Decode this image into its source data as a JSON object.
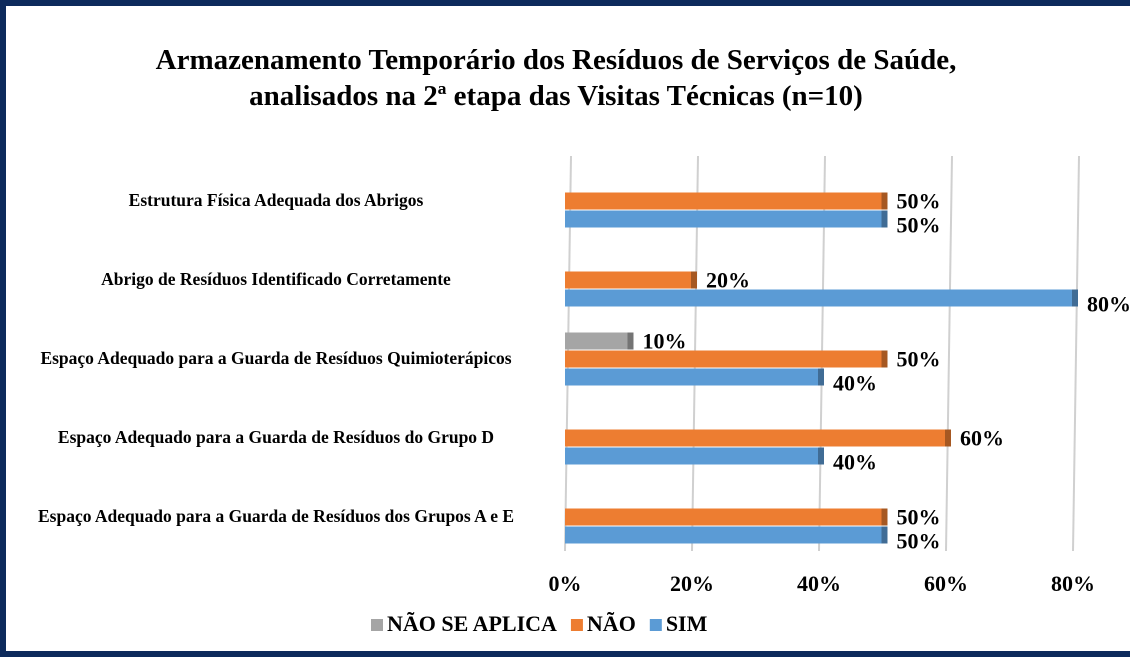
{
  "chart_data": {
    "type": "bar",
    "orientation": "horizontal",
    "title": "Armazenamento Temporário dos Resíduos de Serviços de Saúde, analisados na 2ª etapa das Visitas Técnicas (n=10)",
    "categories": [
      "Estrutura Física Adequada dos Abrigos",
      "Abrigo de Resíduos Identificado Corretamente",
      "Espaço Adequado para a Guarda de Resíduos Quimioterápicos",
      "Espaço Adequado para a Guarda de Resíduos do Grupo D",
      "Espaço Adequado para a Guarda de Resíduos dos Grupos A e E"
    ],
    "series": [
      {
        "name": "NÃO SE APLICA",
        "color": "#a5a5a5",
        "values": [
          null,
          null,
          10,
          null,
          null
        ],
        "value_labels": [
          null,
          null,
          "10%",
          null,
          null
        ]
      },
      {
        "name": "NÃO",
        "color": "#ed7d31",
        "values": [
          50,
          20,
          50,
          60,
          50
        ],
        "value_labels": [
          "50%",
          "20%",
          "50%",
          "60%",
          "50%"
        ]
      },
      {
        "name": "SIM",
        "color": "#5b9bd5",
        "values": [
          50,
          80,
          40,
          40,
          50
        ],
        "value_labels": [
          "50%",
          "80%",
          "40%",
          "40%",
          "50%"
        ]
      }
    ],
    "xlim": [
      0,
      80
    ],
    "xticks": [
      {
        "value": 0,
        "label": "0%"
      },
      {
        "value": 20,
        "label": "20%"
      },
      {
        "value": 40,
        "label": "40%"
      },
      {
        "value": 60,
        "label": "60%"
      },
      {
        "value": 80,
        "label": "80%"
      }
    ],
    "grid": true,
    "legend": "bottom"
  }
}
